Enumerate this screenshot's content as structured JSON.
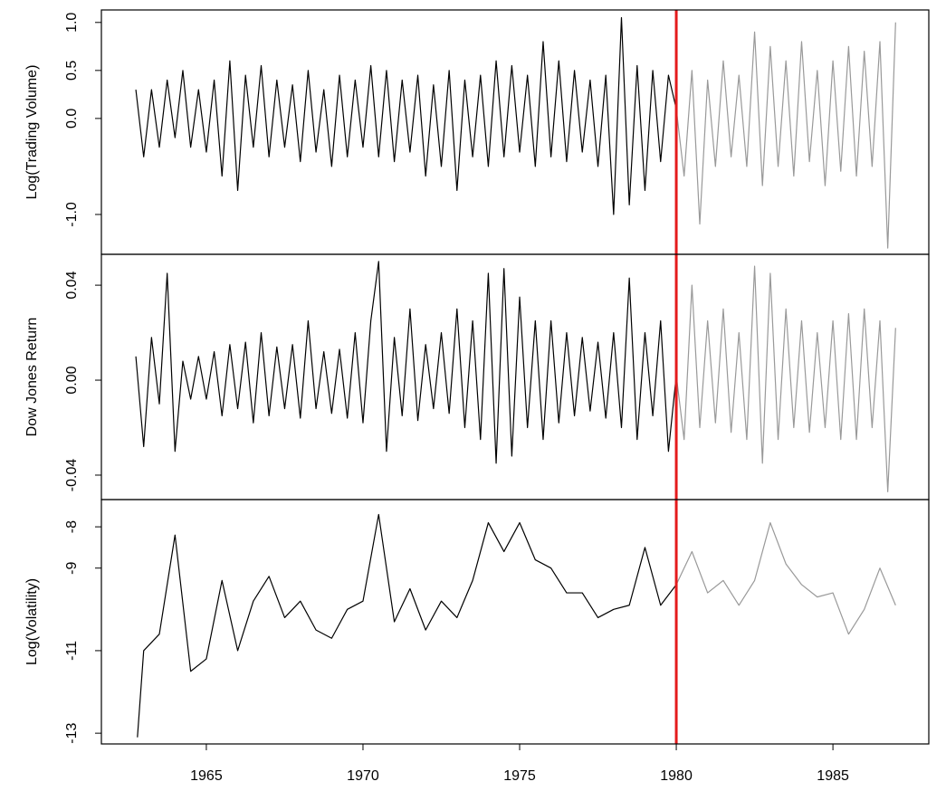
{
  "chart_data": [
    {
      "type": "line",
      "ylabel": "Log(Trading Volume)",
      "x": [
        1962.75,
        1963,
        1963.25,
        1963.5,
        1963.75,
        1964,
        1964.25,
        1964.5,
        1964.75,
        1965,
        1965.25,
        1965.5,
        1965.75,
        1966,
        1966.25,
        1966.5,
        1966.75,
        1967,
        1967.25,
        1967.5,
        1967.75,
        1968,
        1968.25,
        1968.5,
        1968.75,
        1969,
        1969.25,
        1969.5,
        1969.75,
        1970,
        1970.25,
        1970.5,
        1970.75,
        1971,
        1971.25,
        1971.5,
        1971.75,
        1972,
        1972.25,
        1972.5,
        1972.75,
        1973,
        1973.25,
        1973.5,
        1973.75,
        1974,
        1974.25,
        1974.5,
        1974.75,
        1975,
        1975.25,
        1975.5,
        1975.75,
        1976,
        1976.25,
        1976.5,
        1976.75,
        1977,
        1977.25,
        1977.5,
        1977.75,
        1978,
        1978.25,
        1978.5,
        1978.75,
        1979,
        1979.25,
        1979.5,
        1979.75,
        1980,
        1980.25,
        1980.5,
        1980.75,
        1981,
        1981.25,
        1981.5,
        1981.75,
        1982,
        1982.25,
        1982.5,
        1982.75,
        1983,
        1983.25,
        1983.5,
        1983.75,
        1984,
        1984.25,
        1984.5,
        1984.75,
        1985,
        1985.25,
        1985.5,
        1985.75,
        1986,
        1986.25,
        1986.5,
        1986.75,
        1987
      ],
      "series": [
        {
          "color": "#000000",
          "values": [
            0.3,
            -0.4,
            0.3,
            -0.3,
            0.4,
            -0.2,
            0.5,
            -0.3,
            0.3,
            -0.35,
            0.4,
            -0.6,
            0.6,
            -0.75,
            0.45,
            -0.3,
            0.55,
            -0.4,
            0.4,
            -0.3,
            0.35,
            -0.45,
            0.5,
            -0.35,
            0.3,
            -0.5,
            0.45,
            -0.4,
            0.4,
            -0.3,
            0.55,
            -0.4,
            0.5,
            -0.45,
            0.4,
            -0.35,
            0.45,
            -0.6,
            0.35,
            -0.5,
            0.5,
            -0.75,
            0.4,
            -0.4,
            0.45,
            -0.5,
            0.6,
            -0.4,
            0.55,
            -0.35,
            0.45,
            -0.5,
            0.8,
            -0.4,
            0.6,
            -0.45,
            0.5,
            -0.35,
            0.4,
            -0.5,
            0.45,
            -1.0,
            1.05,
            -0.9,
            0.55,
            -0.75,
            0.5,
            -0.45,
            0.45,
            0.1,
            null,
            null,
            null,
            null,
            null,
            null,
            null,
            null,
            null,
            null,
            null,
            null,
            null,
            null,
            null,
            null,
            null,
            null,
            null,
            null,
            null,
            null,
            null,
            null,
            null,
            null,
            null,
            null
          ]
        },
        {
          "color": "#999999",
          "values": [
            null,
            null,
            null,
            null,
            null,
            null,
            null,
            null,
            null,
            null,
            null,
            null,
            null,
            null,
            null,
            null,
            null,
            null,
            null,
            null,
            null,
            null,
            null,
            null,
            null,
            null,
            null,
            null,
            null,
            null,
            null,
            null,
            null,
            null,
            null,
            null,
            null,
            null,
            null,
            null,
            null,
            null,
            null,
            null,
            null,
            null,
            null,
            null,
            null,
            null,
            null,
            null,
            null,
            null,
            null,
            null,
            null,
            null,
            null,
            null,
            null,
            null,
            null,
            null,
            null,
            null,
            null,
            null,
            null,
            0.1,
            -0.6,
            0.5,
            -1.1,
            0.4,
            -0.5,
            0.6,
            -0.4,
            0.45,
            -0.5,
            0.9,
            -0.7,
            0.75,
            -0.5,
            0.6,
            -0.6,
            0.8,
            -0.45,
            0.5,
            -0.7,
            0.6,
            -0.55,
            0.75,
            -0.6,
            0.7,
            -0.5,
            0.8,
            -1.35,
            1.0
          ]
        }
      ],
      "xlim": [
        1961.65,
        1988.06
      ],
      "ylim": [
        -1.415,
        1.13
      ],
      "yticks": [
        {
          "value": -1,
          "label": "-1.0"
        },
        {
          "value": 0,
          "label": "0.0"
        },
        0.5,
        {
          "value": 1,
          "label": "1.0"
        }
      ],
      "vline": {
        "value": 1980,
        "color": "#e41a1c"
      }
    },
    {
      "type": "line",
      "ylabel": "Dow Jones Return",
      "x": [
        1962.75,
        1963,
        1963.25,
        1963.5,
        1963.75,
        1964,
        1964.25,
        1964.5,
        1964.75,
        1965,
        1965.25,
        1965.5,
        1965.75,
        1966,
        1966.25,
        1966.5,
        1966.75,
        1967,
        1967.25,
        1967.5,
        1967.75,
        1968,
        1968.25,
        1968.5,
        1968.75,
        1969,
        1969.25,
        1969.5,
        1969.75,
        1970,
        1970.25,
        1970.5,
        1970.75,
        1971,
        1971.25,
        1971.5,
        1971.75,
        1972,
        1972.25,
        1972.5,
        1972.75,
        1973,
        1973.25,
        1973.5,
        1973.75,
        1974,
        1974.25,
        1974.5,
        1974.75,
        1975,
        1975.25,
        1975.5,
        1975.75,
        1976,
        1976.25,
        1976.5,
        1976.75,
        1977,
        1977.25,
        1977.5,
        1977.75,
        1978,
        1978.25,
        1978.5,
        1978.75,
        1979,
        1979.25,
        1979.5,
        1979.75,
        1980,
        1980.25,
        1980.5,
        1980.75,
        1981,
        1981.25,
        1981.5,
        1981.75,
        1982,
        1982.25,
        1982.5,
        1982.75,
        1983,
        1983.25,
        1983.5,
        1983.75,
        1984,
        1984.25,
        1984.5,
        1984.75,
        1985,
        1985.25,
        1985.5,
        1985.75,
        1986,
        1986.25,
        1986.5,
        1986.75,
        1987
      ],
      "series": [
        {
          "color": "#000000",
          "values": [
            0.01,
            -0.028,
            0.018,
            -0.01,
            0.045,
            -0.03,
            0.008,
            -0.008,
            0.01,
            -0.008,
            0.012,
            -0.015,
            0.015,
            -0.012,
            0.016,
            -0.018,
            0.02,
            -0.015,
            0.014,
            -0.012,
            0.015,
            -0.016,
            0.025,
            -0.012,
            0.012,
            -0.014,
            0.013,
            -0.016,
            0.02,
            -0.018,
            0.025,
            0.05,
            -0.03,
            0.018,
            -0.015,
            0.03,
            -0.017,
            0.015,
            -0.012,
            0.02,
            -0.014,
            0.03,
            -0.02,
            0.025,
            -0.025,
            0.045,
            -0.035,
            0.047,
            -0.032,
            0.035,
            -0.02,
            0.025,
            -0.025,
            0.025,
            -0.018,
            0.02,
            -0.015,
            0.018,
            -0.013,
            0.016,
            -0.016,
            0.02,
            -0.02,
            0.043,
            -0.025,
            0.02,
            -0.015,
            0.025,
            -0.03,
            0.002,
            null,
            null,
            null,
            null,
            null,
            null,
            null,
            null,
            null,
            null,
            null,
            null,
            null,
            null,
            null,
            null,
            null,
            null,
            null,
            null,
            null,
            null,
            null,
            null,
            null,
            null,
            null,
            null
          ]
        },
        {
          "color": "#999999",
          "values": [
            null,
            null,
            null,
            null,
            null,
            null,
            null,
            null,
            null,
            null,
            null,
            null,
            null,
            null,
            null,
            null,
            null,
            null,
            null,
            null,
            null,
            null,
            null,
            null,
            null,
            null,
            null,
            null,
            null,
            null,
            null,
            null,
            null,
            null,
            null,
            null,
            null,
            null,
            null,
            null,
            null,
            null,
            null,
            null,
            null,
            null,
            null,
            null,
            null,
            null,
            null,
            null,
            null,
            null,
            null,
            null,
            null,
            null,
            null,
            null,
            null,
            null,
            null,
            null,
            null,
            null,
            null,
            null,
            null,
            0.002,
            -0.025,
            0.04,
            -0.02,
            0.025,
            -0.018,
            0.03,
            -0.022,
            0.02,
            -0.025,
            0.048,
            -0.035,
            0.045,
            -0.025,
            0.03,
            -0.02,
            0.025,
            -0.022,
            0.02,
            -0.02,
            0.025,
            -0.025,
            0.028,
            -0.025,
            0.03,
            -0.02,
            0.025,
            -0.047,
            0.022
          ]
        }
      ],
      "xlim": [
        1961.65,
        1988.06
      ],
      "ylim": [
        -0.0503,
        0.053
      ],
      "yticks": [
        -0.04,
        {
          "value": 0,
          "label": "0.00"
        },
        0.04
      ],
      "vline": {
        "value": 1980,
        "color": "#e41a1c"
      }
    },
    {
      "type": "line",
      "ylabel": "Log(Volatility)",
      "x": [
        1962.8,
        1963,
        1963.5,
        1964,
        1964.5,
        1965,
        1965.5,
        1966,
        1966.5,
        1967,
        1967.5,
        1968,
        1968.5,
        1969,
        1969.5,
        1970,
        1970.5,
        1971,
        1971.5,
        1972,
        1972.5,
        1973,
        1973.5,
        1974,
        1974.5,
        1975,
        1975.5,
        1976,
        1976.5,
        1977,
        1977.5,
        1978,
        1978.5,
        1979,
        1979.5,
        1980,
        1980.5,
        1981,
        1981.5,
        1982,
        1982.5,
        1983,
        1983.5,
        1984,
        1984.5,
        1985,
        1985.5,
        1986,
        1986.5,
        1987
      ],
      "series": [
        {
          "color": "#000000",
          "values": [
            -13.1,
            -11.0,
            -10.6,
            -8.2,
            -11.5,
            -11.2,
            -9.3,
            -11.0,
            -9.8,
            -9.2,
            -10.2,
            -9.8,
            -10.5,
            -10.7,
            -10.0,
            -9.8,
            -7.7,
            -10.3,
            -9.5,
            -10.5,
            -9.8,
            -10.2,
            -9.3,
            -7.9,
            -8.6,
            -7.9,
            -8.8,
            -9.0,
            -9.6,
            -9.6,
            -10.2,
            -10.0,
            -9.9,
            -8.5,
            -9.9,
            -9.4,
            null,
            null,
            null,
            null,
            null,
            null,
            null,
            null,
            null,
            null,
            null,
            null,
            null,
            null
          ]
        },
        {
          "color": "#999999",
          "values": [
            null,
            null,
            null,
            null,
            null,
            null,
            null,
            null,
            null,
            null,
            null,
            null,
            null,
            null,
            null,
            null,
            null,
            null,
            null,
            null,
            null,
            null,
            null,
            null,
            null,
            null,
            null,
            null,
            null,
            null,
            null,
            null,
            null,
            null,
            null,
            -9.4,
            -8.6,
            -9.6,
            -9.3,
            -9.9,
            -9.3,
            -7.9,
            -8.9,
            -9.4,
            -9.7,
            -9.6,
            -10.6,
            -10.0,
            -9.0,
            -9.9
          ]
        }
      ],
      "xlim": [
        1961.65,
        1988.06
      ],
      "ylim": [
        -13.26,
        -7.34
      ],
      "yticks": [
        -13,
        -11,
        -9,
        -8
      ],
      "xticks": [
        1965,
        1970,
        1975,
        1980,
        1985
      ],
      "vline": {
        "value": 1980,
        "color": "#e41a1c"
      }
    }
  ]
}
